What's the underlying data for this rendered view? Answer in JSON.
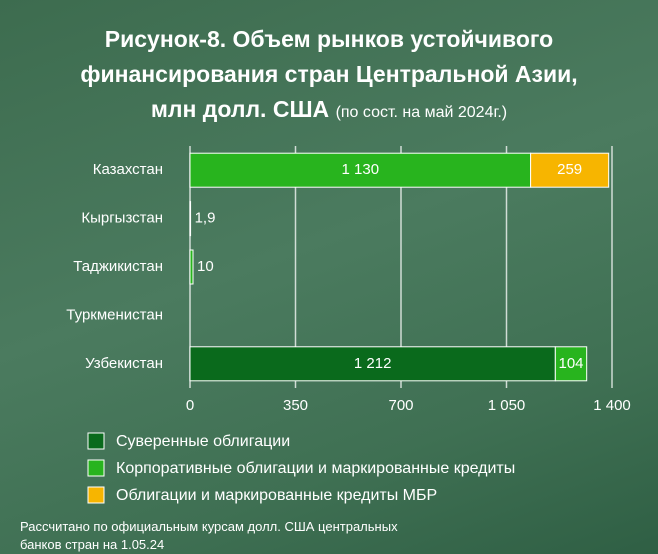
{
  "chart_data": {
    "type": "stacked_bar_horizontal",
    "title": "Рисунок-8. Объем рынков устойчивого финансирования стран Центральной Азии, млн долл. США",
    "subtitle": "(по сост. на май 2024г.)",
    "categories": [
      "Казахстан",
      "Кыргызстан",
      "Таджикистан",
      "Туркменистан",
      "Узбекистан"
    ],
    "series": [
      {
        "name": "Суверенные облигации",
        "color": "#0a6a1c",
        "values": [
          null,
          null,
          null,
          null,
          1212
        ],
        "value_labels": [
          null,
          null,
          null,
          null,
          "1 212"
        ]
      },
      {
        "name": "Корпоративные облигации и маркированные кредиты",
        "color": "#28b41e",
        "values": [
          1130,
          1.9,
          10,
          null,
          104
        ],
        "value_labels": [
          "1 130",
          "1,9",
          "10",
          null,
          "104"
        ]
      },
      {
        "name": "Облигации и маркированные кредиты МБР",
        "color": "#f7b500",
        "values": [
          259,
          null,
          null,
          null,
          null
        ],
        "value_labels": [
          "259",
          null,
          null,
          null,
          null
        ]
      }
    ],
    "xlim": [
      0,
      1400
    ],
    "xticks": [
      0,
      350,
      700,
      {
        "value": 1050,
        "label": "1 050"
      },
      {
        "value": 1400,
        "label": "1 400"
      }
    ],
    "grid": true,
    "footnote": "Рассчитано по официальным курсам долл. США центральных банков стран на 1.05.24"
  }
}
